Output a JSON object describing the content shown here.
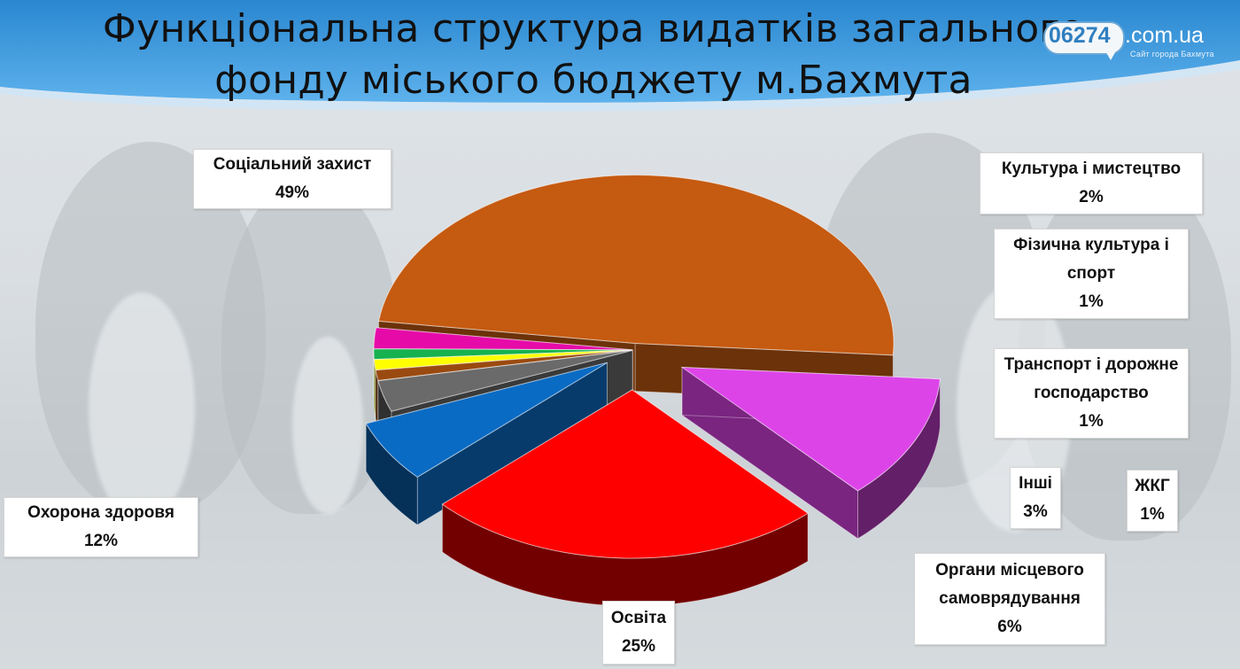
{
  "title_line1": "Функціональна структура видатків загального",
  "title_line2": "фонду міського бюджету м.Бахмута",
  "logo": {
    "code": "06274",
    "domain": ".com.ua",
    "tagline": "Сайт города Бахмута"
  },
  "colors": {
    "banner": "#3b97dc",
    "banner_light": "#8cc6f0"
  },
  "chart_data": {
    "type": "pie",
    "title": "Функціональна структура видатків загального фонду міського бюджету м.Бахмута",
    "style": "3d-exploded",
    "slices": [
      {
        "label": "Соціальний захист",
        "value": 49,
        "display": "49%",
        "color": "#c55a11"
      },
      {
        "label": "Культура і мистецтво",
        "value": 2,
        "display": "2%",
        "color": "#e60ba8"
      },
      {
        "label": "Фізична культура і спорт",
        "value": 1,
        "display": "1%",
        "color": "#17b150"
      },
      {
        "label": "Транспорт і дорожне господарство",
        "value": 1,
        "display": "1%",
        "color": "#ffff00"
      },
      {
        "label": "ЖКГ",
        "value": 1,
        "display": "1%",
        "color": "#9a4a10"
      },
      {
        "label": "Інші",
        "value": 3,
        "display": "3%",
        "color": "#6a6a6a"
      },
      {
        "label": "Органи місцевого самоврядування",
        "value": 6,
        "display": "6%",
        "color": "#0a6bc4"
      },
      {
        "label": "Освіта",
        "value": 25,
        "display": "25%",
        "color": "#ff0000"
      },
      {
        "label": "Охорона здоровя",
        "value": 12,
        "display": "12%",
        "color": "#dd44e8"
      }
    ]
  },
  "labels": {
    "social": {
      "line1": "Соціальний захист",
      "value": "49%"
    },
    "culture": {
      "line1": "Культура і мистецтво",
      "value": "2%"
    },
    "sport": {
      "line1": "Фізична культура і",
      "line2": "спорт",
      "value": "1%"
    },
    "transport": {
      "line1": "Транспорт і дорожне",
      "line2": "господарство",
      "value": "1%"
    },
    "other": {
      "line1": "Інші",
      "value": "3%"
    },
    "housing": {
      "line1": "ЖКГ",
      "value": "1%"
    },
    "admin": {
      "line1": "Органи місцевого",
      "line2": "самоврядування",
      "value": "6%"
    },
    "education": {
      "line1": "Освіта",
      "value": "25%"
    },
    "health": {
      "line1": "Охорона здоровя",
      "value": "12%"
    }
  }
}
